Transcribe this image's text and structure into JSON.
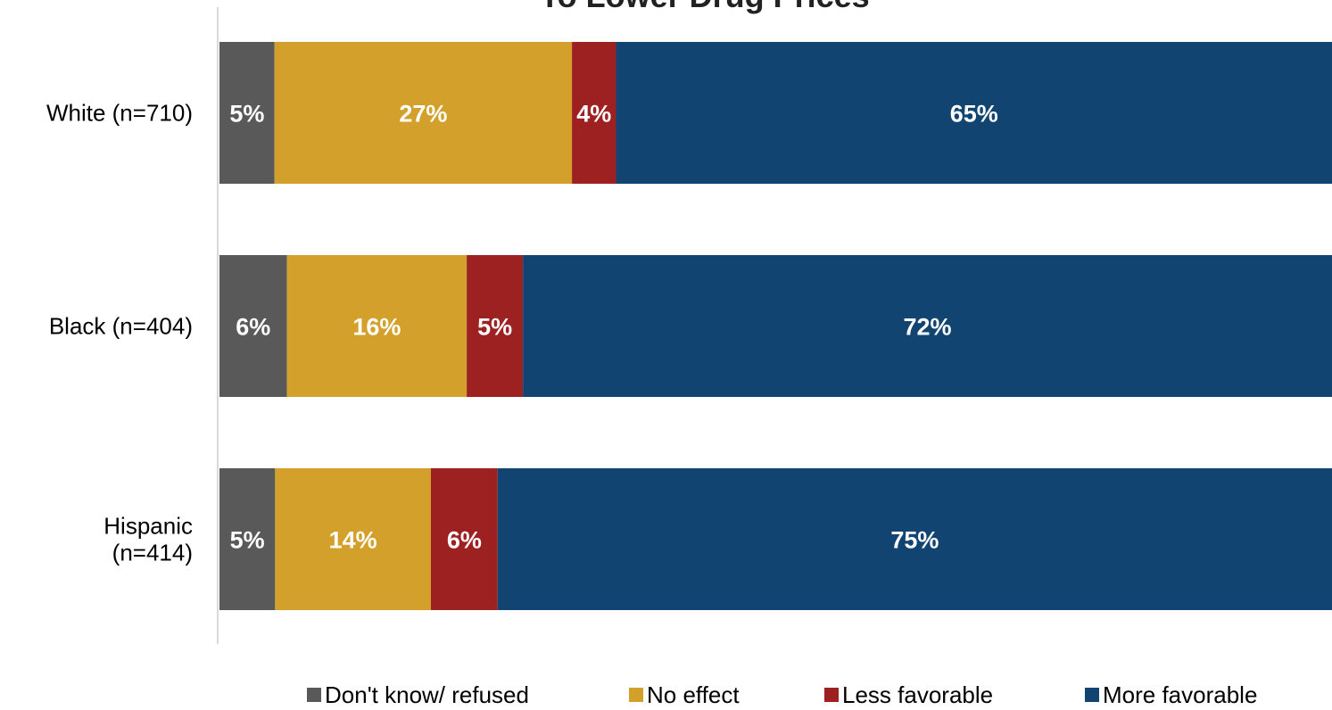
{
  "chart_data": {
    "type": "bar",
    "orientation": "horizontal",
    "stacked": true,
    "title": "To Lower Drug Prices",
    "categories": [
      "White (n=710)",
      "Black (n=404)",
      "Hispanic (n=414)"
    ],
    "series": [
      {
        "name": "Don't know/ refused",
        "color": "#595959",
        "values": [
          5,
          6,
          5
        ]
      },
      {
        "name": "No effect",
        "color": "#d4a02c",
        "values": [
          27,
          16,
          14
        ]
      },
      {
        "name": "Less favorable",
        "color": "#9e2121",
        "values": [
          4,
          5,
          6
        ]
      },
      {
        "name": "More favorable",
        "color": "#124471",
        "values": [
          65,
          72,
          75
        ]
      }
    ],
    "value_suffix": "%",
    "xlim": [
      0,
      100
    ],
    "grid": false,
    "legend": "bottom"
  }
}
